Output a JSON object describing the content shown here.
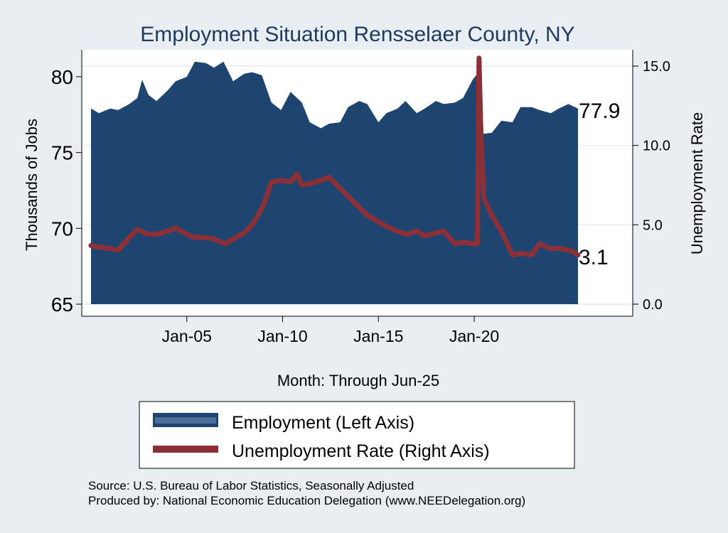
{
  "chart_data": {
    "type": "area",
    "title": "Employment Situation Rensselaer  County, NY",
    "xlabel": "Month: Through Jun-25",
    "ylabel_left": "Thousands of Jobs",
    "ylabel_right": "Unemployment Rate",
    "x_start": "Jan-2000",
    "x_end": "Jun-2025",
    "x_ticks": [
      "Jan-05",
      "Jan-10",
      "Jan-15",
      "Jan-20"
    ],
    "y_left_ticks": [
      65,
      70,
      75,
      80
    ],
    "y_left_range": [
      65,
      81.5
    ],
    "y_right_ticks": [
      "0.0",
      "5.0",
      "10.0",
      "15.0"
    ],
    "y_right_range": [
      0,
      15.5
    ],
    "grid": true,
    "legend_position": "bottom",
    "series": [
      {
        "name": "Employment (Left Axis)",
        "axis": "left",
        "style": "area",
        "color": "#1d4570",
        "values": [
          [
            "2000-01",
            77.9
          ],
          [
            "2000-06",
            77.6
          ],
          [
            "2001-01",
            77.9
          ],
          [
            "2001-06",
            77.8
          ],
          [
            "2002-01",
            78.2
          ],
          [
            "2002-06",
            78.6
          ],
          [
            "2002-09",
            79.8
          ],
          [
            "2003-01",
            78.8
          ],
          [
            "2003-06",
            78.4
          ],
          [
            "2004-01",
            79.1
          ],
          [
            "2004-06",
            79.7
          ],
          [
            "2005-01",
            80.0
          ],
          [
            "2005-06",
            81.0
          ],
          [
            "2006-01",
            80.9
          ],
          [
            "2006-06",
            80.6
          ],
          [
            "2006-12",
            81.0
          ],
          [
            "2007-06",
            79.7
          ],
          [
            "2008-01",
            80.2
          ],
          [
            "2008-06",
            80.3
          ],
          [
            "2008-12",
            80.1
          ],
          [
            "2009-06",
            78.3
          ],
          [
            "2009-12",
            77.8
          ],
          [
            "2010-06",
            79.0
          ],
          [
            "2011-01",
            78.3
          ],
          [
            "2011-06",
            77.0
          ],
          [
            "2012-01",
            76.6
          ],
          [
            "2012-06",
            76.9
          ],
          [
            "2013-01",
            77.0
          ],
          [
            "2013-06",
            78.0
          ],
          [
            "2014-01",
            78.4
          ],
          [
            "2014-06",
            78.2
          ],
          [
            "2015-01",
            77.0
          ],
          [
            "2015-06",
            77.6
          ],
          [
            "2016-01",
            77.9
          ],
          [
            "2016-06",
            78.4
          ],
          [
            "2017-01",
            77.6
          ],
          [
            "2017-06",
            77.9
          ],
          [
            "2018-01",
            78.4
          ],
          [
            "2018-06",
            78.2
          ],
          [
            "2019-01",
            78.3
          ],
          [
            "2019-06",
            78.6
          ],
          [
            "2019-12",
            79.8
          ],
          [
            "2020-03",
            80.2
          ],
          [
            "2020-04",
            76.2
          ],
          [
            "2020-12",
            76.3
          ],
          [
            "2021-06",
            77.1
          ],
          [
            "2022-01",
            77.0
          ],
          [
            "2022-06",
            78.0
          ],
          [
            "2023-01",
            78.0
          ],
          [
            "2023-06",
            77.8
          ],
          [
            "2024-01",
            77.6
          ],
          [
            "2024-06",
            77.9
          ],
          [
            "2024-12",
            78.2
          ],
          [
            "2025-06",
            77.9
          ]
        ]
      },
      {
        "name": "Unemployment Rate (Right Axis)",
        "axis": "right",
        "style": "line",
        "color": "#8c3038",
        "values": [
          [
            "2000-01",
            3.7
          ],
          [
            "2000-06",
            3.6
          ],
          [
            "2001-01",
            3.5
          ],
          [
            "2001-06",
            3.4
          ],
          [
            "2002-01",
            4.2
          ],
          [
            "2002-06",
            4.7
          ],
          [
            "2003-01",
            4.4
          ],
          [
            "2003-06",
            4.4
          ],
          [
            "2004-01",
            4.6
          ],
          [
            "2004-06",
            4.8
          ],
          [
            "2005-01",
            4.4
          ],
          [
            "2005-06",
            4.2
          ],
          [
            "2006-01",
            4.2
          ],
          [
            "2006-06",
            4.1
          ],
          [
            "2007-01",
            3.8
          ],
          [
            "2007-06",
            4.1
          ],
          [
            "2008-01",
            4.5
          ],
          [
            "2008-06",
            5.0
          ],
          [
            "2009-01",
            6.2
          ],
          [
            "2009-06",
            7.7
          ],
          [
            "2010-01",
            7.8
          ],
          [
            "2010-06",
            7.7
          ],
          [
            "2010-10",
            8.2
          ],
          [
            "2011-01",
            7.5
          ],
          [
            "2011-06",
            7.6
          ],
          [
            "2012-01",
            7.8
          ],
          [
            "2012-06",
            8.0
          ],
          [
            "2013-01",
            7.3
          ],
          [
            "2013-06",
            6.8
          ],
          [
            "2014-01",
            6.1
          ],
          [
            "2014-06",
            5.6
          ],
          [
            "2015-01",
            5.2
          ],
          [
            "2015-06",
            4.9
          ],
          [
            "2016-01",
            4.6
          ],
          [
            "2016-06",
            4.4
          ],
          [
            "2017-01",
            4.6
          ],
          [
            "2017-06",
            4.3
          ],
          [
            "2018-01",
            4.5
          ],
          [
            "2018-06",
            4.6
          ],
          [
            "2019-01",
            3.8
          ],
          [
            "2019-06",
            3.9
          ],
          [
            "2020-01",
            3.8
          ],
          [
            "2020-03",
            3.8
          ],
          [
            "2020-04",
            15.5
          ],
          [
            "2020-05",
            11.5
          ],
          [
            "2020-07",
            6.7
          ],
          [
            "2020-12",
            5.6
          ],
          [
            "2021-06",
            4.6
          ],
          [
            "2022-01",
            3.1
          ],
          [
            "2022-06",
            3.2
          ],
          [
            "2023-01",
            3.1
          ],
          [
            "2023-06",
            3.8
          ],
          [
            "2024-01",
            3.5
          ],
          [
            "2024-06",
            3.5
          ],
          [
            "2025-01",
            3.4
          ],
          [
            "2025-06",
            3.1
          ]
        ]
      }
    ],
    "end_labels": {
      "employment": "77.9",
      "unemployment": "3.1"
    }
  },
  "source_note": "Source: U.S. Bureau of Labor Statistics, Seasonally Adjusted",
  "produced_by": "Produced by: National Economic Education Delegation (www.NEEDelegation.org)",
  "colors": {
    "background": "#e9eef3",
    "plot": "#ffffff",
    "employment": "#1d4570",
    "unemployment": "#8c3038"
  }
}
